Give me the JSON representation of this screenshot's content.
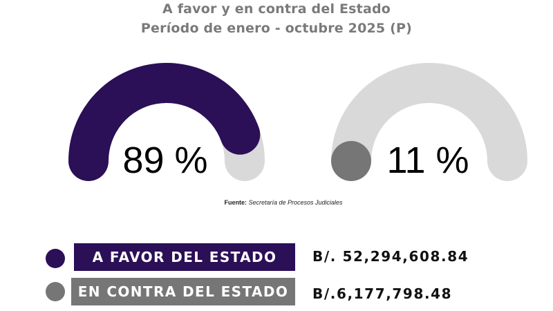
{
  "title": "A favor y en contra del Estado",
  "subtitle": "Período de enero - octubre 2025 (P)",
  "source": {
    "label": "Fuente:",
    "text": "Secretaría de Procesos Judiciales"
  },
  "colors": {
    "favor": "#2b0f57",
    "contra": "#767676",
    "track": "#d9d9d9",
    "title": "#7a7a7a"
  },
  "chart_data": {
    "type": "gauge",
    "title": "A favor y en contra del Estado",
    "subtitle": "Período de enero - octubre 2025 (P)",
    "series": [
      {
        "name": "A FAVOR DEL ESTADO",
        "percent": 89,
        "percent_label": "89 %",
        "amount": "B/. 52,294,608.84",
        "color": "#2b0f57"
      },
      {
        "name": "EN CONTRA DEL ESTADO",
        "percent": 11,
        "percent_label": "11 %",
        "amount": "B/.6,177,798.48",
        "color": "#767676"
      }
    ]
  }
}
